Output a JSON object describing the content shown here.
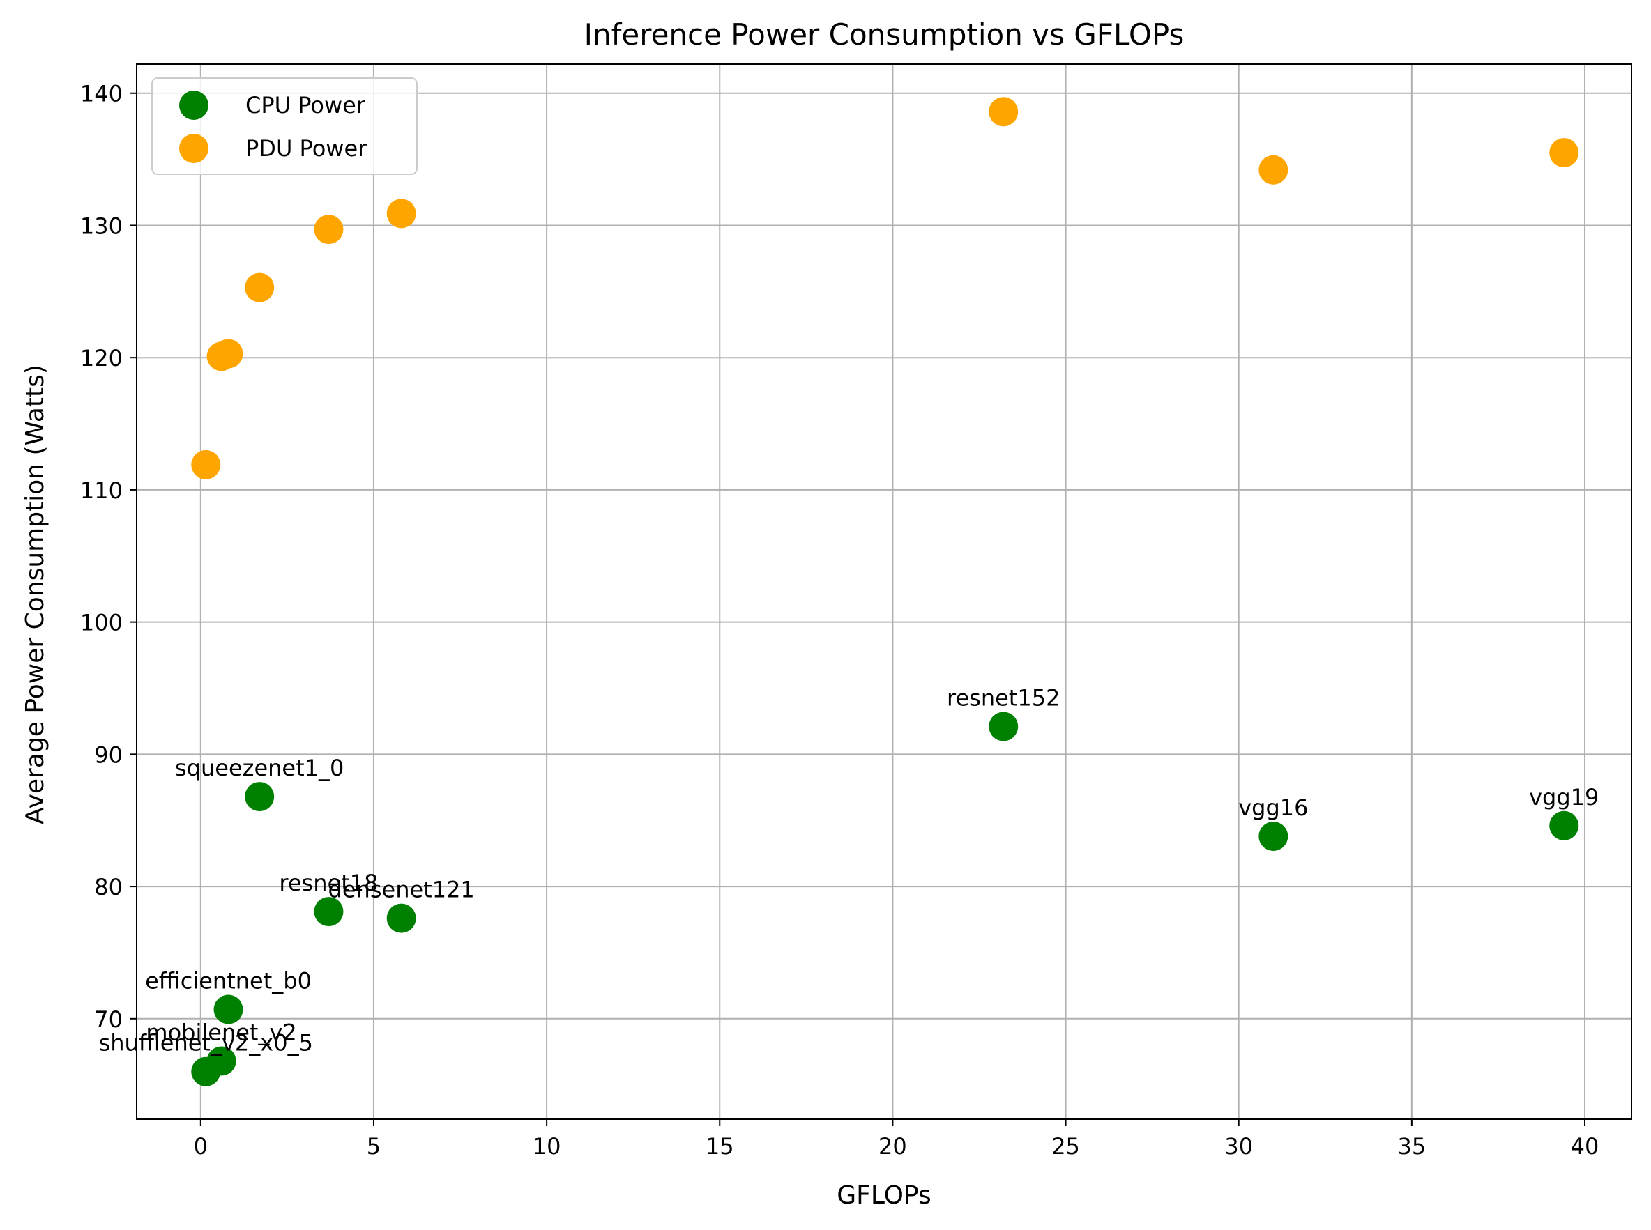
{
  "chart_data": {
    "type": "scatter",
    "title": "Inference Power Consumption vs GFLOPs",
    "xlabel": "GFLOPs",
    "ylabel": "Average Power Consumption (Watts)",
    "xlim": [
      -1.85,
      41.35
    ],
    "ylim": [
      62.4,
      142.2
    ],
    "xticks": [
      0,
      5,
      10,
      15,
      20,
      25,
      30,
      35,
      40
    ],
    "yticks": [
      70,
      80,
      90,
      100,
      110,
      120,
      130,
      140
    ],
    "grid": true,
    "legend_position": "top-left",
    "series": [
      {
        "name": "CPU Power",
        "color": "#008000",
        "points": [
          {
            "x": 0.15,
            "y": 66.0,
            "label": "shufflenet_v2_x0_5"
          },
          {
            "x": 0.6,
            "y": 66.8,
            "label": "mobilenet_v2"
          },
          {
            "x": 0.8,
            "y": 70.7,
            "label": "efficientnet_b0"
          },
          {
            "x": 1.7,
            "y": 86.8,
            "label": "squeezenet1_0"
          },
          {
            "x": 3.7,
            "y": 78.1,
            "label": "resnet18"
          },
          {
            "x": 5.8,
            "y": 77.6,
            "label": "densenet121"
          },
          {
            "x": 23.2,
            "y": 92.1,
            "label": "resnet152"
          },
          {
            "x": 31.0,
            "y": 83.8,
            "label": "vgg16"
          },
          {
            "x": 39.4,
            "y": 84.6,
            "label": "vgg19"
          }
        ]
      },
      {
        "name": "PDU Power",
        "color": "#FFA500",
        "points": [
          {
            "x": 0.15,
            "y": 111.9
          },
          {
            "x": 0.6,
            "y": 120.1
          },
          {
            "x": 0.8,
            "y": 120.3
          },
          {
            "x": 1.7,
            "y": 125.3
          },
          {
            "x": 3.7,
            "y": 129.7
          },
          {
            "x": 5.8,
            "y": 130.9
          },
          {
            "x": 23.2,
            "y": 138.6
          },
          {
            "x": 31.0,
            "y": 134.2
          },
          {
            "x": 39.4,
            "y": 135.5
          }
        ]
      }
    ]
  }
}
